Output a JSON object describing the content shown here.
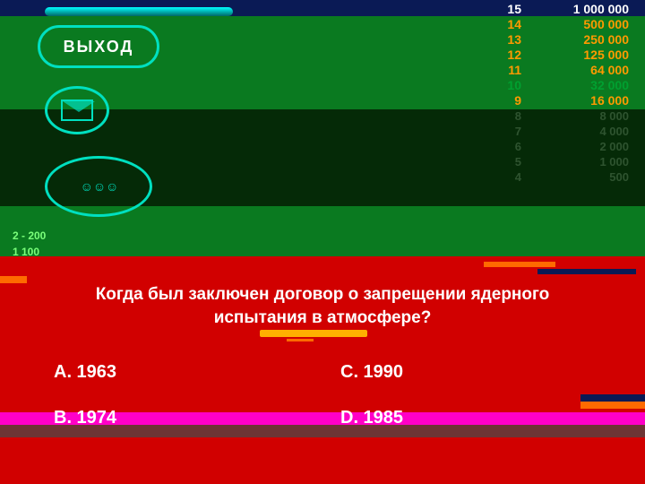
{
  "exit_label": "ВЫХОД",
  "question_text": "Когда был заключен договор о запрещении ядерного испытания в атмосфере?",
  "answers": {
    "a": "A. 1963",
    "b": "B. 1974",
    "c": "C. 1990",
    "d": "D. 1985"
  },
  "ladder_top": [
    {
      "n": "15",
      "amt": "1 000 000",
      "color": "#ffffff"
    },
    {
      "n": "14",
      "amt": "500 000",
      "color": "#ff9a00"
    },
    {
      "n": "13",
      "amt": "250 000",
      "color": "#ff9a00"
    },
    {
      "n": "12",
      "amt": "125 000",
      "color": "#ff9a00"
    },
    {
      "n": "11",
      "amt": "64 000",
      "color": "#ff9a00"
    },
    {
      "n": "10",
      "amt": "32 000",
      "color": "#00a030"
    },
    {
      "n": "9",
      "amt": "16 000",
      "color": "#ff9a00"
    }
  ],
  "ladder_faded": [
    {
      "n": "8",
      "amt": "8 000"
    },
    {
      "n": "7",
      "amt": "4 000"
    },
    {
      "n": "6",
      "amt": "2 000"
    },
    {
      "n": "5",
      "amt": "1 000"
    },
    {
      "n": "4",
      "amt": "500"
    }
  ],
  "side_small": {
    "top_text": "2 - 200",
    "bottom_text": "1    100"
  },
  "colors": {
    "green": "#0a7a20",
    "darkgreen": "#052a07",
    "red": "#d10000",
    "navy": "#0a1a55",
    "magenta": "#ff00c8",
    "cyan": "#00e0c0",
    "orange": "#ff9a00",
    "white": "#ffffff"
  }
}
